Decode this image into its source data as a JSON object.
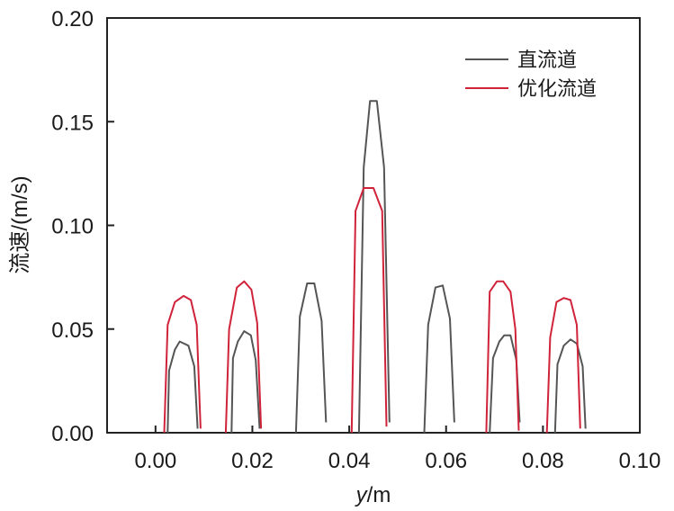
{
  "chart_data": {
    "type": "line",
    "title": "",
    "xlabel_var": "y",
    "xlabel_unit": "/m",
    "ylabel": "流速/(m/s)",
    "xlim": [
      -0.01,
      0.1
    ],
    "ylim": [
      0.0,
      0.2
    ],
    "x_ticks": [
      "0.00",
      "0.02",
      "0.04",
      "0.06",
      "0.08",
      "0.10"
    ],
    "x_tick_values": [
      0.0,
      0.02,
      0.04,
      0.06,
      0.08,
      0.1
    ],
    "y_ticks": [
      "0.00",
      "0.05",
      "0.10",
      "0.15",
      "0.20"
    ],
    "y_tick_values": [
      0.0,
      0.05,
      0.1,
      0.15,
      0.2
    ],
    "grid": false,
    "legend_position": "top-right",
    "series": [
      {
        "name": "直流道",
        "color": "#555555",
        "segments": [
          [
            [
              0.0025,
              0.0
            ],
            [
              0.0028,
              0.03
            ],
            [
              0.004,
              0.04
            ],
            [
              0.005,
              0.044
            ],
            [
              0.0068,
              0.042
            ],
            [
              0.008,
              0.032
            ],
            [
              0.0087,
              0.002
            ]
          ],
          [
            [
              0.0157,
              0.0
            ],
            [
              0.016,
              0.036
            ],
            [
              0.017,
              0.044
            ],
            [
              0.0183,
              0.049
            ],
            [
              0.0197,
              0.047
            ],
            [
              0.0207,
              0.035
            ],
            [
              0.0215,
              0.002
            ]
          ],
          [
            [
              0.029,
              0.0
            ],
            [
              0.0298,
              0.056
            ],
            [
              0.0313,
              0.072
            ],
            [
              0.0328,
              0.072
            ],
            [
              0.0343,
              0.054
            ],
            [
              0.0352,
              0.005
            ]
          ],
          [
            [
              0.042,
              0.0
            ],
            [
              0.043,
              0.128
            ],
            [
              0.0443,
              0.16
            ],
            [
              0.0457,
              0.16
            ],
            [
              0.0472,
              0.128
            ],
            [
              0.0483,
              0.005
            ]
          ],
          [
            [
              0.0555,
              0.0
            ],
            [
              0.0563,
              0.052
            ],
            [
              0.0578,
              0.07
            ],
            [
              0.0593,
              0.071
            ],
            [
              0.0608,
              0.055
            ],
            [
              0.0617,
              0.005
            ]
          ],
          [
            [
              0.069,
              0.0
            ],
            [
              0.0697,
              0.036
            ],
            [
              0.071,
              0.044
            ],
            [
              0.072,
              0.047
            ],
            [
              0.0733,
              0.047
            ],
            [
              0.0745,
              0.035
            ],
            [
              0.0752,
              0.005
            ]
          ],
          [
            [
              0.0825,
              0.0
            ],
            [
              0.083,
              0.033
            ],
            [
              0.0843,
              0.042
            ],
            [
              0.0857,
              0.045
            ],
            [
              0.087,
              0.043
            ],
            [
              0.0882,
              0.032
            ],
            [
              0.0888,
              0.002
            ]
          ]
        ]
      },
      {
        "name": "优化流道",
        "color": "#d0233a",
        "segments": [
          [
            [
              0.0018,
              0.0
            ],
            [
              0.0025,
              0.052
            ],
            [
              0.004,
              0.063
            ],
            [
              0.0058,
              0.066
            ],
            [
              0.0073,
              0.064
            ],
            [
              0.0085,
              0.052
            ],
            [
              0.0093,
              0.002
            ]
          ],
          [
            [
              0.0145,
              0.0
            ],
            [
              0.0152,
              0.05
            ],
            [
              0.0168,
              0.07
            ],
            [
              0.0183,
              0.073
            ],
            [
              0.0198,
              0.069
            ],
            [
              0.021,
              0.053
            ],
            [
              0.0218,
              0.002
            ]
          ],
          [
            [
              0.0405,
              0.0
            ],
            [
              0.0413,
              0.107
            ],
            [
              0.043,
              0.118
            ],
            [
              0.045,
              0.118
            ],
            [
              0.0468,
              0.107
            ],
            [
              0.0477,
              0.003
            ]
          ],
          [
            [
              0.0683,
              0.0
            ],
            [
              0.069,
              0.068
            ],
            [
              0.0705,
              0.073
            ],
            [
              0.0718,
              0.073
            ],
            [
              0.0733,
              0.068
            ],
            [
              0.0743,
              0.05
            ],
            [
              0.075,
              0.001
            ]
          ],
          [
            [
              0.0808,
              0.0
            ],
            [
              0.0815,
              0.046
            ],
            [
              0.0828,
              0.063
            ],
            [
              0.0843,
              0.065
            ],
            [
              0.0857,
              0.064
            ],
            [
              0.087,
              0.052
            ],
            [
              0.0877,
              0.002
            ]
          ]
        ]
      }
    ]
  }
}
